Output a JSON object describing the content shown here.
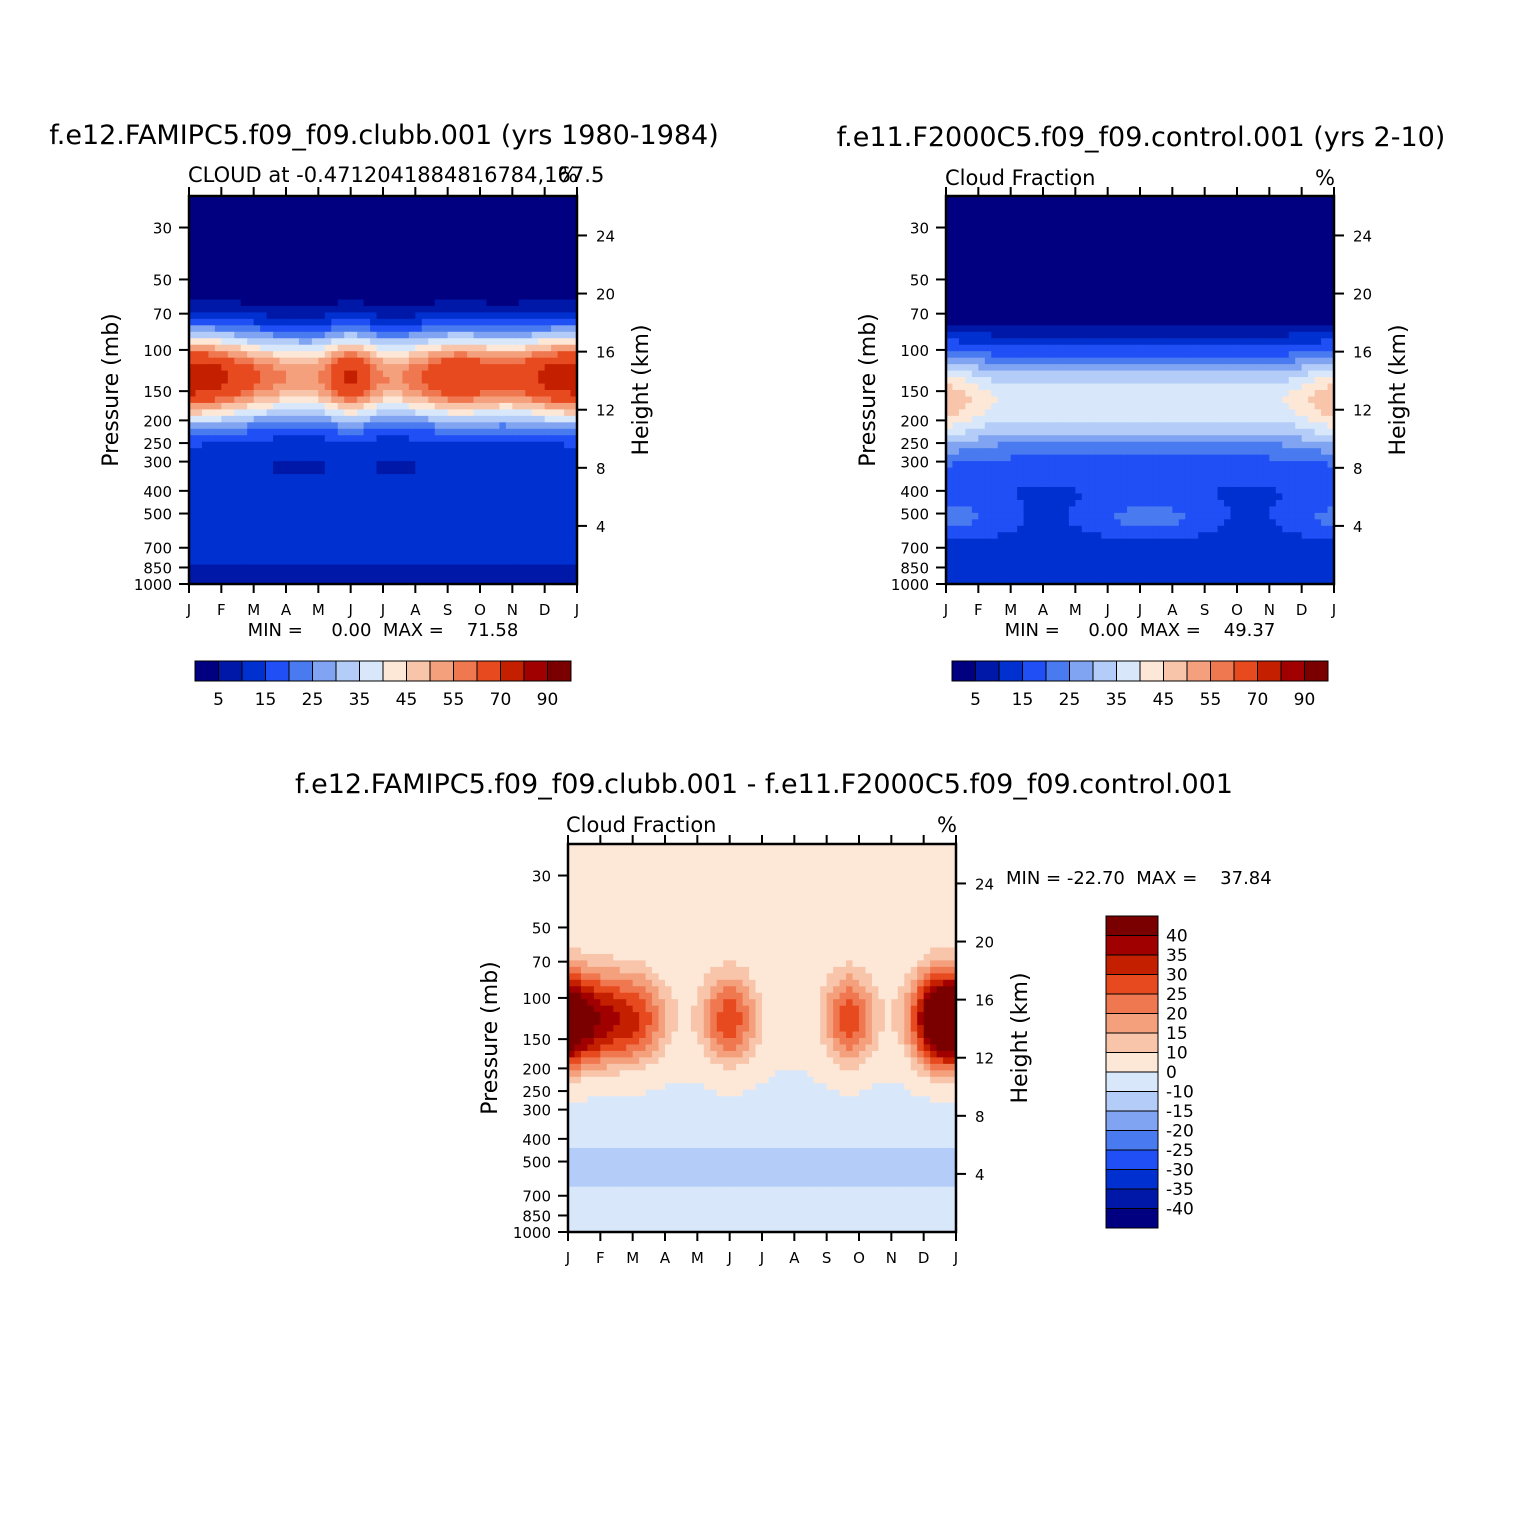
{
  "chart_data": [
    {
      "type": "heatmap",
      "id": "p1",
      "title": "f.e12.FAMIPC5.f09_f09.clubb.001 (yrs 1980-1984)",
      "subtitle_left": "CLOUD at -0.4712041884816784,167.5",
      "subtitle_right": "%",
      "ylabel": "Pressure (mb)",
      "y2label": "Height (km)",
      "months": [
        "J",
        "F",
        "M",
        "A",
        "M",
        "J",
        "J",
        "A",
        "S",
        "O",
        "N",
        "D",
        "J"
      ],
      "pressure_ticks": [
        "30",
        "50",
        "70",
        "100",
        "150",
        "200",
        "250",
        "300",
        "400",
        "500",
        "700",
        "850",
        "1000"
      ],
      "height_ticks": [
        "24",
        "20",
        "16",
        "12",
        "8",
        "4"
      ],
      "stats": "MIN =     0.00  MAX =    71.58",
      "contour_levels": [
        "5",
        "15",
        "25",
        "35",
        "45",
        "55",
        "70",
        "90"
      ],
      "bands": [
        {
          "z": 0.2,
          "cores": [
            [
              0.5,
              2.5,
              0.97
            ]
          ]
        },
        {
          "z": 0.84,
          "cores": [
            [
              0.3,
              0.76,
              0.99
            ]
          ]
        },
        {
          "z": 0.84,
          "cores": [
            [
              0.3,
              0.76,
              0.99
            ]
          ]
        },
        {
          "z": 0.7,
          "cores": [
            [
              0.3,
              0.76,
              0.99
            ]
          ]
        },
        {
          "z": 0.5,
          "cores": [
            [
              0.2,
              0.76,
              0.6
            ],
            [
              5,
              0.72,
              0.35
            ]
          ]
        },
        {
          "z": 0.8,
          "cores": [
            [
              0.3,
              0.76,
              0.99
            ]
          ]
        },
        {
          "z": 0.7,
          "cores": [
            [
              0.3,
              0.76,
              0.99
            ]
          ]
        },
        {
          "z": 0.6,
          "cores": [
            [
              0.3,
              0.76,
              0.99
            ]
          ]
        },
        {
          "z": 0.2,
          "cores": [
            [
              8,
              0.45,
              0.2
            ]
          ]
        },
        {
          "z": 0.6,
          "cores": [
            [
              0.3,
              0.76,
              0.99
            ]
          ]
        },
        {
          "z": 0.75,
          "cores": [
            [
              0.3,
              0.76,
              0.99
            ]
          ]
        },
        {
          "z": 0.8,
          "cores": [
            [
              0.3,
              0.76,
              0.99
            ]
          ]
        },
        {
          "z": 0.05,
          "cores": [
            [
              1.0,
              3.0,
              0.6
            ]
          ]
        }
      ]
    },
    {
      "type": "heatmap",
      "id": "p2",
      "title": "f.e11.F2000C5.f09_f09.control.001 (yrs 2-10)",
      "subtitle_left": "Cloud Fraction",
      "subtitle_right": "%",
      "ylabel": "Pressure (mb)",
      "y2label": "Height (km)",
      "months": [
        "J",
        "F",
        "M",
        "A",
        "M",
        "J",
        "J",
        "A",
        "S",
        "O",
        "N",
        "D",
        "J"
      ],
      "pressure_ticks": [
        "30",
        "50",
        "70",
        "100",
        "150",
        "200",
        "250",
        "300",
        "400",
        "500",
        "700",
        "850",
        "1000"
      ],
      "height_ticks": [
        "24",
        "20",
        "16",
        "12",
        "8",
        "4"
      ],
      "stats": "MIN =     0.00  MAX =    49.37",
      "contour_levels": [
        "5",
        "15",
        "25",
        "35",
        "45",
        "55",
        "70",
        "90"
      ]
    },
    {
      "type": "heatmap",
      "id": "p3",
      "title": "f.e12.FAMIPC5.f09_f09.clubb.001 - f.e11.F2000C5.f09_f09.control.001",
      "subtitle_left": "Cloud Fraction",
      "subtitle_right": "%",
      "ylabel": "Pressure (mb)",
      "y2label": "Height (km)",
      "months": [
        "J",
        "F",
        "M",
        "A",
        "M",
        "J",
        "J",
        "A",
        "S",
        "O",
        "N",
        "D",
        "J"
      ],
      "pressure_ticks": [
        "30",
        "50",
        "70",
        "100",
        "150",
        "200",
        "250",
        "300",
        "400",
        "500",
        "700",
        "850",
        "1000"
      ],
      "height_ticks": [
        "24",
        "20",
        "16",
        "12",
        "8",
        "4"
      ],
      "stats": "MIN = -22.70  MAX =    37.84",
      "contour_levels": [
        "40",
        "35",
        "30",
        "25",
        "20",
        "15",
        "10",
        "0",
        "-10",
        "-15",
        "-20",
        "-25",
        "-30",
        "-35",
        "-40"
      ]
    }
  ],
  "colors": {
    "cloud_scale": [
      "#000080",
      "#0018a8",
      "#0030d0",
      "#1f4ff5",
      "#4a7af0",
      "#80a4f2",
      "#b4ccf8",
      "#d8e8fa",
      "#fde8d8",
      "#f8c4aa",
      "#f4a07c",
      "#f07850",
      "#e84a20",
      "#c42000",
      "#a00000",
      "#7a0000"
    ],
    "diff_scale": [
      "#000080",
      "#0018a8",
      "#0030d0",
      "#1f4ff5",
      "#4a7af0",
      "#80a4f2",
      "#b4ccf8",
      "#d8e8fa",
      "#fde8d8",
      "#f8c4aa",
      "#f4a07c",
      "#f07850",
      "#e84a20",
      "#c42000",
      "#a00000",
      "#7a0000"
    ]
  }
}
